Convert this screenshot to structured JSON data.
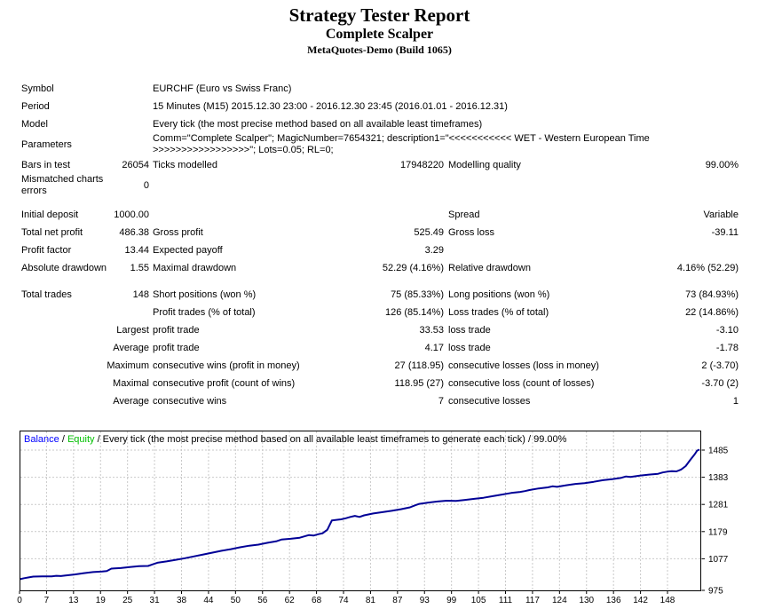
{
  "header": {
    "title": "Strategy Tester Report",
    "strategy": "Complete Scalper",
    "server": "MetaQuotes-Demo (Build 1065)"
  },
  "table": {
    "rows": [
      {
        "l1": "Symbol",
        "span": true,
        "l2": "EURCHF (Euro vs Swiss Franc)"
      },
      {
        "l1": "Period",
        "span": true,
        "l2": "15 Minutes (M15) 2015.12.30 23:00 - 2016.12.30 23:45 (2016.01.01 - 2016.12.31)"
      },
      {
        "l1": "Model",
        "span": true,
        "l2": "Every tick (the most precise method based on all available least timeframes)"
      },
      {
        "l1": "Parameters",
        "span": true,
        "l2": "Comm=\"Complete Scalper\"; MagicNumber=7654321; description1=\"<<<<<<<<<<< WET - Western European Time >>>>>>>>>>>>>>>>>\"; Lots=0.05; RL=0;"
      },
      {
        "l1": "Bars in test",
        "v1": "26054",
        "l2": "Ticks modelled",
        "v2": "17948220",
        "l3": "Modelling quality",
        "v3": "99.00%"
      },
      {
        "l1": "Mismatched charts errors",
        "v1": "0"
      },
      {
        "gap": true
      },
      {
        "l1": "Initial deposit",
        "v1": "1000.00",
        "l3": "Spread",
        "v3": "Variable"
      },
      {
        "l1": "Total net profit",
        "v1": "486.38",
        "l2": "Gross profit",
        "v2": "525.49",
        "l3": "Gross loss",
        "v3": "-39.11"
      },
      {
        "l1": "Profit factor",
        "v1": "13.44",
        "l2": "Expected payoff",
        "v2": "3.29"
      },
      {
        "l1": "Absolute drawdown",
        "v1": "1.55",
        "l2": "Maximal drawdown",
        "v2": "52.29 (4.16%)",
        "l3": "Relative drawdown",
        "v3": "4.16% (52.29)"
      },
      {
        "gap": true
      },
      {
        "l1": "Total trades",
        "v1": "148",
        "l2": "Short positions (won %)",
        "v2": "75 (85.33%)",
        "l3": "Long positions (won %)",
        "v3": "73 (84.93%)"
      },
      {
        "l2": "Profit trades (% of total)",
        "v2": "126 (85.14%)",
        "l3": "Loss trades (% of total)",
        "v3": "22 (14.86%)"
      },
      {
        "v1": "Largest",
        "l2": "profit trade",
        "v2": "33.53",
        "l3": "loss trade",
        "v3": "-3.10"
      },
      {
        "v1": "Average",
        "l2": "profit trade",
        "v2": "4.17",
        "l3": "loss trade",
        "v3": "-1.78"
      },
      {
        "v1": "Maximum",
        "l2": "consecutive wins (profit in money)",
        "v2": "27 (118.95)",
        "l3": "consecutive losses (loss in money)",
        "v3": "2 (-3.70)"
      },
      {
        "v1": "Maximal",
        "l2": "consecutive profit (count of wins)",
        "v2": "118.95 (27)",
        "l3": "consecutive loss (count of losses)",
        "v3": "-3.70 (2)"
      },
      {
        "v1": "Average",
        "l2": "consecutive wins",
        "v2": "7",
        "l3": "consecutive losses",
        "v3": "1"
      }
    ]
  },
  "chart": {
    "legend_balance": "Balance",
    "legend_sep": " / ",
    "legend_equity": "Equity",
    "legend_rest": " / Every tick (the most precise method based on all available least timeframes to generate each tick) / 99.00%"
  },
  "chart_data": {
    "type": "line",
    "title": "Balance / Equity graph",
    "xlabel": "",
    "ylabel": "",
    "legend_position": "top-left inside plot",
    "grid": true,
    "xlim": [
      0,
      148
    ],
    "ylim": [
      975,
      1556
    ],
    "x_ticks": [
      0,
      7,
      13,
      19,
      25,
      31,
      38,
      44,
      50,
      56,
      62,
      68,
      74,
      81,
      87,
      93,
      99,
      105,
      111,
      117,
      124,
      130,
      136,
      142,
      148
    ],
    "y_ticks": [
      975,
      1077,
      1179,
      1281,
      1383,
      1485
    ],
    "colors": {
      "balance_line": "#000096",
      "equity_legend": "#00C000",
      "balance_legend": "#0000FF",
      "grid": "#c9c9c9",
      "axis": "#000000"
    },
    "series": [
      {
        "name": "Balance",
        "points": [
          [
            0,
            1000
          ],
          [
            1,
            1004
          ],
          [
            2,
            1007
          ],
          [
            3,
            1010
          ],
          [
            5,
            1011
          ],
          [
            7,
            1011
          ],
          [
            8,
            1013
          ],
          [
            9,
            1012
          ],
          [
            10,
            1014
          ],
          [
            12,
            1018
          ],
          [
            14,
            1023
          ],
          [
            16,
            1027
          ],
          [
            18,
            1029
          ],
          [
            19,
            1031
          ],
          [
            20,
            1040
          ],
          [
            22,
            1042
          ],
          [
            24,
            1046
          ],
          [
            26,
            1049
          ],
          [
            28,
            1050
          ],
          [
            29,
            1056
          ],
          [
            30,
            1062
          ],
          [
            32,
            1067
          ],
          [
            34,
            1073
          ],
          [
            36,
            1079
          ],
          [
            38,
            1086
          ],
          [
            40,
            1093
          ],
          [
            42,
            1100
          ],
          [
            44,
            1107
          ],
          [
            46,
            1113
          ],
          [
            48,
            1120
          ],
          [
            50,
            1126
          ],
          [
            52,
            1130
          ],
          [
            54,
            1137
          ],
          [
            56,
            1143
          ],
          [
            57,
            1149
          ],
          [
            59,
            1152
          ],
          [
            61,
            1156
          ],
          [
            62,
            1161
          ],
          [
            63,
            1166
          ],
          [
            64,
            1164
          ],
          [
            65,
            1169
          ],
          [
            66,
            1173
          ],
          [
            67,
            1186
          ],
          [
            68,
            1221
          ],
          [
            70,
            1225
          ],
          [
            71,
            1229
          ],
          [
            72,
            1234
          ],
          [
            73,
            1238
          ],
          [
            74,
            1234
          ],
          [
            75,
            1240
          ],
          [
            77,
            1247
          ],
          [
            79,
            1252
          ],
          [
            81,
            1257
          ],
          [
            83,
            1263
          ],
          [
            85,
            1270
          ],
          [
            86,
            1277
          ],
          [
            87,
            1283
          ],
          [
            89,
            1288
          ],
          [
            91,
            1292
          ],
          [
            93,
            1295
          ],
          [
            95,
            1294
          ],
          [
            97,
            1298
          ],
          [
            99,
            1302
          ],
          [
            101,
            1306
          ],
          [
            103,
            1312
          ],
          [
            105,
            1318
          ],
          [
            107,
            1324
          ],
          [
            109,
            1328
          ],
          [
            110,
            1331
          ],
          [
            111,
            1335
          ],
          [
            113,
            1341
          ],
          [
            115,
            1345
          ],
          [
            116,
            1349
          ],
          [
            117,
            1347
          ],
          [
            119,
            1353
          ],
          [
            121,
            1358
          ],
          [
            123,
            1361
          ],
          [
            125,
            1366
          ],
          [
            127,
            1372
          ],
          [
            129,
            1376
          ],
          [
            131,
            1381
          ],
          [
            132,
            1386
          ],
          [
            133,
            1384
          ],
          [
            135,
            1389
          ],
          [
            137,
            1393
          ],
          [
            139,
            1396
          ],
          [
            140,
            1401
          ],
          [
            141,
            1404
          ],
          [
            142,
            1406
          ],
          [
            143,
            1405
          ],
          [
            144,
            1412
          ],
          [
            145,
            1425
          ],
          [
            146,
            1448
          ],
          [
            147,
            1470
          ],
          [
            147.5,
            1483
          ],
          [
            148,
            1487
          ]
        ]
      }
    ]
  }
}
